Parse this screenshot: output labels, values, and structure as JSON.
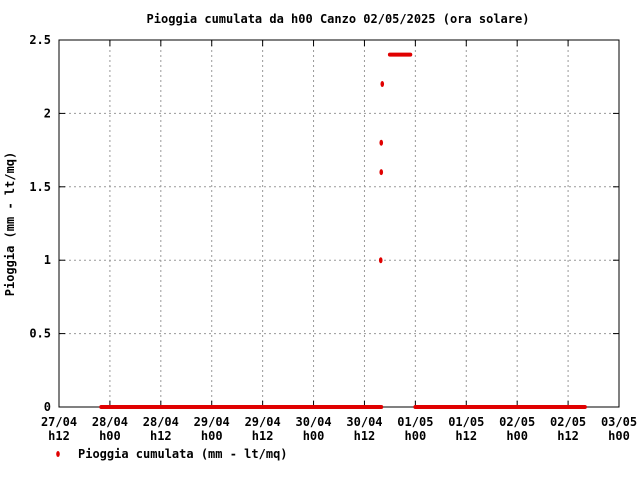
{
  "chart_data": {
    "type": "scatter",
    "title": "Pioggia cumulata da h00 Canzo 02/05/2025 (ora solare)",
    "xlabel": "",
    "ylabel": "Pioggia (mm - lt/mq)",
    "ylim": [
      0,
      2.5
    ],
    "yticks": [
      "0",
      "0.5",
      "1",
      "1.5",
      "2",
      "2.5"
    ],
    "xlim": [
      0,
      11
    ],
    "x_unit_note": "x values are in half-day steps from 27/04 h12",
    "xticks": [
      {
        "top": "27/04",
        "bottom": "h12"
      },
      {
        "top": "28/04",
        "bottom": "h00"
      },
      {
        "top": "28/04",
        "bottom": "h12"
      },
      {
        "top": "29/04",
        "bottom": "h00"
      },
      {
        "top": "29/04",
        "bottom": "h12"
      },
      {
        "top": "30/04",
        "bottom": "h00"
      },
      {
        "top": "30/04",
        "bottom": "h12"
      },
      {
        "top": "01/05",
        "bottom": "h00"
      },
      {
        "top": "01/05",
        "bottom": "h12"
      },
      {
        "top": "02/05",
        "bottom": "h00"
      },
      {
        "top": "02/05",
        "bottom": "h12"
      },
      {
        "top": "03/05",
        "bottom": "h00"
      }
    ],
    "grid": true,
    "legend_position": "bottom-left",
    "series": [
      {
        "name": "Pioggia cumulata (mm - lt/mq)",
        "color": "#e00000",
        "segments": [
          {
            "from": 0.83,
            "to": 6.33,
            "value": 0
          },
          {
            "from": 6.5,
            "to": 6.9,
            "value": 2.4
          },
          {
            "from": 7.0,
            "to": 10.33,
            "value": 0
          }
        ],
        "points": [
          {
            "x": 6.32,
            "y": 1.0
          },
          {
            "x": 6.33,
            "y": 1.6
          },
          {
            "x": 6.33,
            "y": 1.8
          },
          {
            "x": 6.35,
            "y": 2.2
          }
        ]
      }
    ]
  }
}
